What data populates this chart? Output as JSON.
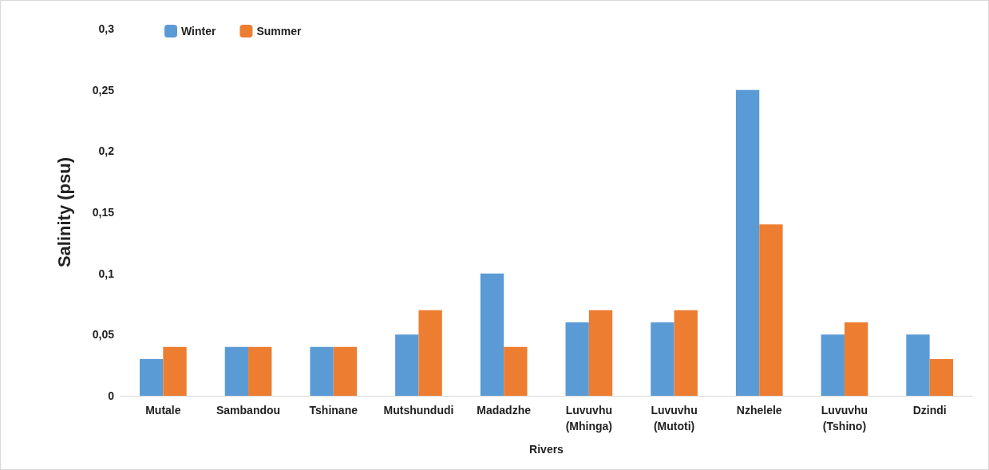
{
  "chart_data": {
    "type": "bar",
    "xlabel": "Rivers",
    "ylabel": "Salinity (psu)",
    "categories": [
      "Mutale",
      "Sambandou",
      "Tshinane",
      "Mutshundudi",
      "Madadzhe",
      "Luvuvhu\n(Mhinga)",
      "Luvuvhu\n(Mutoti)",
      "Nzhelele",
      "Luvuvhu\n(Tshino)",
      "Dzindi"
    ],
    "series": [
      {
        "name": "Winter",
        "color": "#5b9bd5",
        "values": [
          0.03,
          0.04,
          0.04,
          0.05,
          0.1,
          0.06,
          0.06,
          0.25,
          0.05,
          0.05
        ]
      },
      {
        "name": "Summer",
        "color": "#ed7d31",
        "values": [
          0.04,
          0.04,
          0.04,
          0.07,
          0.04,
          0.07,
          0.07,
          0.14,
          0.06,
          0.03
        ]
      }
    ],
    "ylim": [
      0,
      0.3
    ],
    "yticks": [
      {
        "value": 0,
        "label": "0"
      },
      {
        "value": 0.05,
        "label": "0,05"
      },
      {
        "value": 0.1,
        "label": "0,1"
      },
      {
        "value": 0.15,
        "label": "0,15"
      },
      {
        "value": 0.2,
        "label": "0,2"
      },
      {
        "value": 0.25,
        "label": "0,25"
      },
      {
        "value": 0.3,
        "label": "0,3"
      }
    ],
    "grid": false,
    "legend": "top left"
  }
}
